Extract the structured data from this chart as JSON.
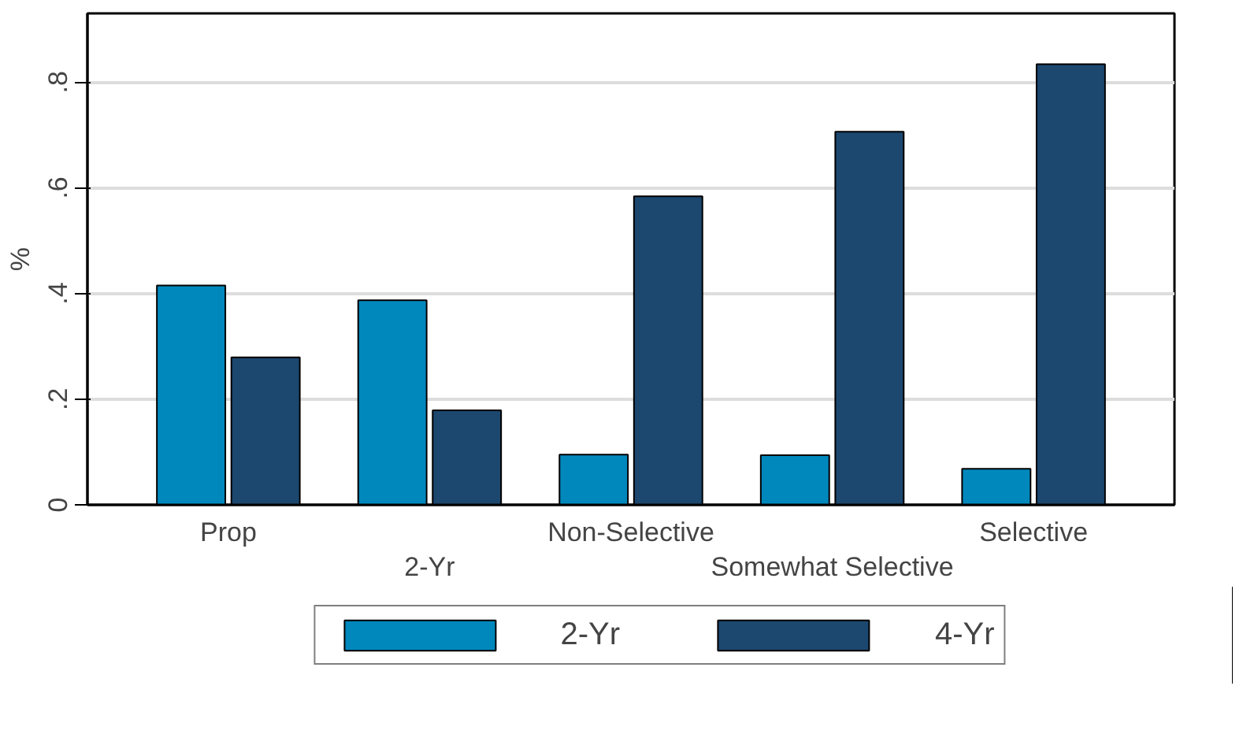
{
  "chart_data": {
    "type": "bar",
    "ylabel": "%",
    "categories": [
      "Prop",
      "2-Yr",
      "Non-Selective",
      "Somewhat Selective",
      "Selective"
    ],
    "series": [
      {
        "name": "2-Yr",
        "color": "#0088bd",
        "values": [
          0.415,
          0.387,
          0.095,
          0.094,
          0.068
        ]
      },
      {
        "name": "4-Yr",
        "color": "#1c476f",
        "values": [
          0.279,
          0.179,
          0.584,
          0.706,
          0.834
        ]
      }
    ],
    "ylim": [
      0,
      0.93
    ],
    "yticks": [
      {
        "value": 0,
        "label": "0"
      },
      {
        "value": 0.2,
        "label": ".2"
      },
      {
        "value": 0.4,
        "label": ".4"
      },
      {
        "value": 0.6,
        "label": ".6"
      },
      {
        "value": 0.8,
        "label": ".8"
      }
    ],
    "grid": "y",
    "legend": "bottom"
  }
}
